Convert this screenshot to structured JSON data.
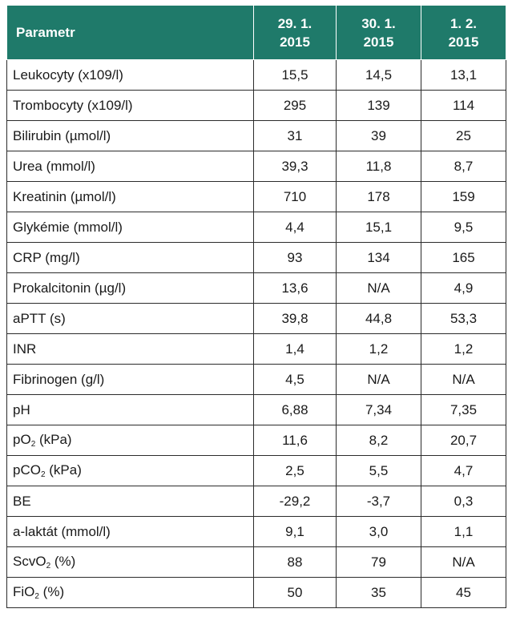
{
  "table": {
    "headers": [
      "Parametr",
      "29. 1.\n2015",
      "30. 1.\n2015",
      "1. 2.\n2015"
    ],
    "header_lines": [
      [
        "Parametr"
      ],
      [
        "29. 1.",
        "2015"
      ],
      [
        "30. 1.",
        "2015"
      ],
      [
        "1. 2.",
        "2015"
      ]
    ],
    "rows": [
      {
        "label": "Leukocyty (x109/l)",
        "values": [
          "15,5",
          "14,5",
          "13,1"
        ]
      },
      {
        "label": "Trombocyty (x109/l)",
        "values": [
          "295",
          "139",
          "114"
        ]
      },
      {
        "label": "Bilirubin (µmol/l)",
        "values": [
          "31",
          "39",
          "25"
        ]
      },
      {
        "label": "Urea (mmol/l)",
        "values": [
          "39,3",
          "11,8",
          "8,7"
        ]
      },
      {
        "label": "Kreatinin (µmol/l)",
        "values": [
          "710",
          "178",
          "159"
        ]
      },
      {
        "label": "Glykémie (mmol/l)",
        "values": [
          "4,4",
          "15,1",
          "9,5"
        ]
      },
      {
        "label": "CRP (mg/l)",
        "values": [
          "93",
          "134",
          "165"
        ]
      },
      {
        "label": "Prokalcitonin (µg/l)",
        "values": [
          "13,6",
          "N/A",
          "4,9"
        ]
      },
      {
        "label": "aPTT (s)",
        "values": [
          "39,8",
          "44,8",
          "53,3"
        ]
      },
      {
        "label": "INR",
        "values": [
          "1,4",
          "1,2",
          "1,2"
        ]
      },
      {
        "label": "Fibrinogen (g/l)",
        "values": [
          "4,5",
          "N/A",
          "N/A"
        ]
      },
      {
        "label": "pH",
        "values": [
          "6,88",
          "7,34",
          "7,35"
        ]
      },
      {
        "label": "pO",
        "sub": "2",
        "suffix": " (kPa)",
        "values": [
          "11,6",
          "8,2",
          "20,7"
        ]
      },
      {
        "label": "pCO",
        "sub": "2",
        "suffix": " (kPa)",
        "values": [
          "2,5",
          "5,5",
          "4,7"
        ]
      },
      {
        "label": "BE",
        "values": [
          "-29,2",
          "-3,7",
          "0,3"
        ]
      },
      {
        "label": "a-laktát (mmol/l)",
        "values": [
          "9,1",
          "3,0",
          "1,1"
        ]
      },
      {
        "label": "ScvO",
        "sub": "2",
        "suffix": " (%)",
        "values": [
          "88",
          "79",
          "N/A"
        ]
      },
      {
        "label": "FiO",
        "sub": "2",
        "suffix": " (%)",
        "values": [
          "50",
          "35",
          "45"
        ]
      }
    ]
  },
  "colors": {
    "header_bg": "#1f7a6a",
    "header_text": "#ffffff",
    "border": "#2b2b2b"
  }
}
